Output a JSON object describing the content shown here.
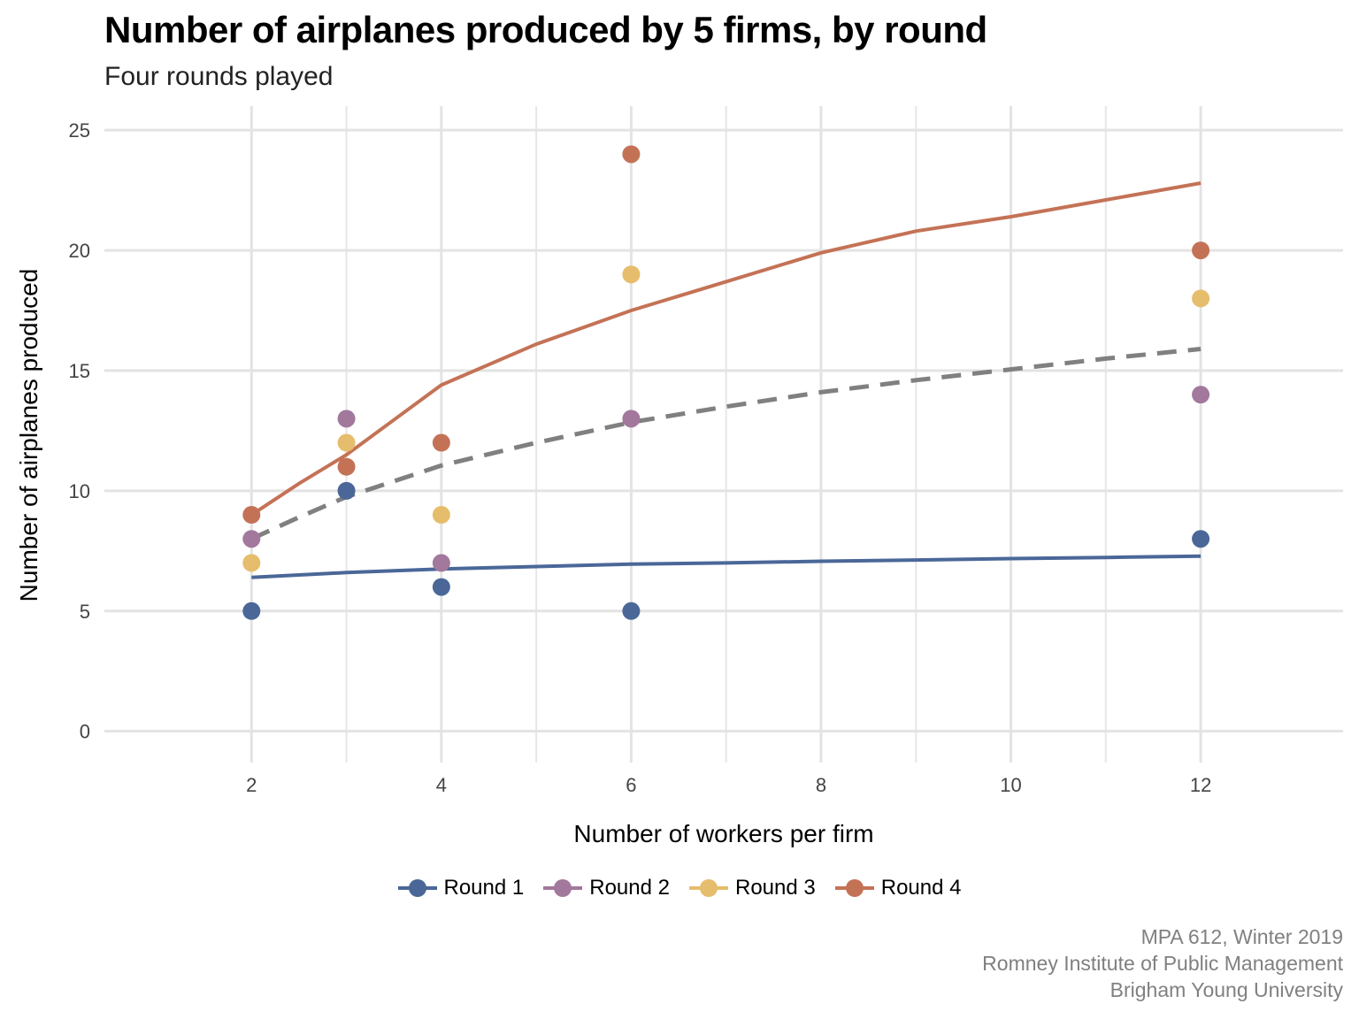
{
  "title": "Number of airplanes produced by 5 firms, by round",
  "subtitle": "Four rounds played",
  "caption": [
    "MPA 612, Winter 2019",
    "Romney Institute of Public Management",
    "Brigham Young University"
  ],
  "chart_data": {
    "type": "scatter",
    "title": "Number of airplanes produced by 5 firms, by round",
    "subtitle": "Four rounds played",
    "xlabel": "Number of workers per firm",
    "ylabel": "Number of airplanes produced",
    "xlim": [
      0.45,
      13.5
    ],
    "ylim": [
      -1.3,
      26
    ],
    "x_ticks": [
      2,
      4,
      6,
      8,
      10,
      12
    ],
    "y_ticks": [
      0,
      5,
      10,
      15,
      20,
      25
    ],
    "grid": true,
    "legend_position": "bottom",
    "series": [
      {
        "name": "Round 1",
        "color": "#4a6798",
        "points": [
          [
            2,
            5
          ],
          [
            3,
            10
          ],
          [
            4,
            6
          ],
          [
            6,
            5
          ],
          [
            12,
            8
          ]
        ],
        "fit": [
          [
            2,
            6.4
          ],
          [
            3,
            6.6
          ],
          [
            4,
            6.75
          ],
          [
            5,
            6.85
          ],
          [
            6,
            6.95
          ],
          [
            7,
            7.0
          ],
          [
            8,
            7.07
          ],
          [
            9,
            7.12
          ],
          [
            10,
            7.18
          ],
          [
            11,
            7.23
          ],
          [
            12,
            7.28
          ]
        ]
      },
      {
        "name": "Round 2",
        "color": "#a2789c",
        "points": [
          [
            2,
            8
          ],
          [
            3,
            13
          ],
          [
            4,
            7
          ],
          [
            6,
            13
          ],
          [
            12,
            14
          ]
        ]
      },
      {
        "name": "Round 3",
        "color": "#e6bd6c",
        "points": [
          [
            2,
            7
          ],
          [
            3,
            12
          ],
          [
            4,
            9
          ],
          [
            6,
            19
          ],
          [
            12,
            18
          ]
        ]
      },
      {
        "name": "Round 4",
        "color": "#c47256",
        "points": [
          [
            2,
            9
          ],
          [
            3,
            11
          ],
          [
            4,
            12
          ],
          [
            6,
            24
          ],
          [
            12,
            20
          ]
        ],
        "fit": [
          [
            2,
            9
          ],
          [
            2.5,
            10.3
          ],
          [
            3,
            11.5
          ],
          [
            3.5,
            12.95
          ],
          [
            4,
            14.4
          ],
          [
            5,
            16.1
          ],
          [
            6,
            17.5
          ],
          [
            7,
            18.7
          ],
          [
            8,
            19.9
          ],
          [
            9,
            20.8
          ],
          [
            10,
            21.4
          ],
          [
            11,
            22.1
          ],
          [
            12,
            22.8
          ]
        ]
      }
    ],
    "overall_fit": {
      "color": "#808080",
      "style": "dashed",
      "points": [
        [
          2,
          8
        ],
        [
          2.5,
          8.9
        ],
        [
          3,
          9.75
        ],
        [
          3.5,
          10.4
        ],
        [
          4,
          11.05
        ],
        [
          5,
          12.0
        ],
        [
          6,
          12.85
        ],
        [
          7,
          13.5
        ],
        [
          8,
          14.1
        ],
        [
          9,
          14.6
        ],
        [
          10,
          15.05
        ],
        [
          11,
          15.5
        ],
        [
          12,
          15.9
        ]
      ]
    }
  }
}
